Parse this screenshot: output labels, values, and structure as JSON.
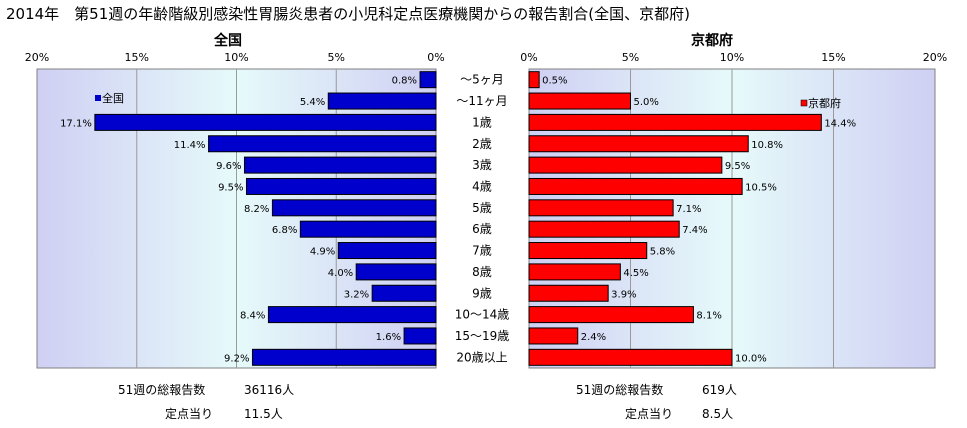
{
  "page_title": "2014年　第51週の年齢階級別感染性胃腸炎患者の小児科定点医療機関からの報告割合(全国、京都府)",
  "chart_data": [
    {
      "type": "bar",
      "orientation": "horizontal",
      "direction": "right-to-left",
      "title": "全国",
      "categories": [
        "～5ヶ月",
        "～11ヶ月",
        "1歳",
        "2歳",
        "3歳",
        "4歳",
        "5歳",
        "6歳",
        "7歳",
        "8歳",
        "9歳",
        "10～14歳",
        "15～19歳",
        "20歳以上"
      ],
      "series": [
        {
          "name": "全国",
          "color": "#0000cc",
          "values": [
            0.8,
            5.4,
            17.1,
            11.4,
            9.6,
            9.5,
            8.2,
            6.8,
            4.9,
            4.0,
            3.2,
            8.4,
            1.6,
            9.2
          ],
          "labels": [
            "0.8%",
            "5.4%",
            "17.1%",
            "11.4%",
            "9.6%",
            "9.5%",
            "8.2%",
            "6.8%",
            "4.9%",
            "4.0%",
            "3.2%",
            "8.4%",
            "1.6%",
            "9.2%"
          ]
        }
      ],
      "xlim": [
        0,
        20
      ],
      "ticks": [
        "0%",
        "5%",
        "10%",
        "15%",
        "20%"
      ],
      "grid": true,
      "legend": "top-left"
    },
    {
      "type": "bar",
      "orientation": "horizontal",
      "direction": "left-to-right",
      "title": "京都府",
      "categories": [
        "～5ヶ月",
        "～11ヶ月",
        "1歳",
        "2歳",
        "3歳",
        "4歳",
        "5歳",
        "6歳",
        "7歳",
        "8歳",
        "9歳",
        "10～14歳",
        "15～19歳",
        "20歳以上"
      ],
      "series": [
        {
          "name": "京都府",
          "color": "#ff0000",
          "values": [
            0.5,
            5.0,
            14.4,
            10.8,
            9.5,
            10.5,
            7.1,
            7.4,
            5.8,
            4.5,
            3.9,
            8.1,
            2.4,
            10.0
          ],
          "labels": [
            "0.5%",
            "5.0%",
            "14.4%",
            "10.8%",
            "9.5%",
            "10.5%",
            "7.1%",
            "7.4%",
            "5.8%",
            "4.5%",
            "3.9%",
            "8.1%",
            "2.4%",
            "10.0%"
          ]
        }
      ],
      "xlim": [
        0,
        20
      ],
      "ticks": [
        "0%",
        "5%",
        "10%",
        "15%",
        "20%"
      ],
      "grid": true,
      "legend": "top-right"
    }
  ],
  "footer": {
    "national_total_label": "51週の総報告数",
    "national_total_value": "36116人",
    "national_per_label": "定点当り",
    "national_per_value": "11.5人",
    "kyoto_total_label": "51週の総報告数",
    "kyoto_total_value": "619人",
    "kyoto_per_label": "定点当り",
    "kyoto_per_value": "8.5人"
  },
  "colors": {
    "plot_bg_edge": "#d0d0f4",
    "plot_bg_center": "#e8fbfb",
    "grid": "#9a9a9a",
    "national_bar": "#0000cc",
    "kyoto_bar": "#ff0000"
  }
}
